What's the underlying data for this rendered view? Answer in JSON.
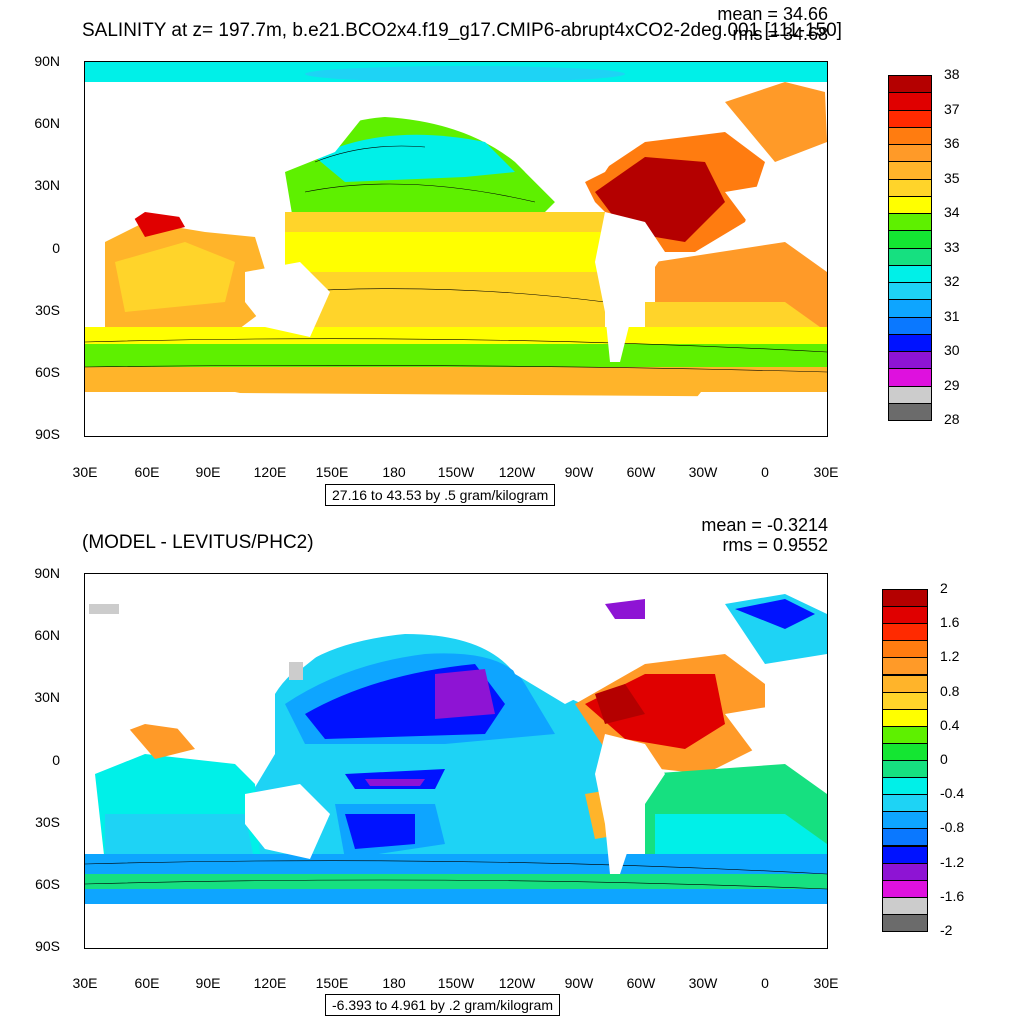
{
  "top": {
    "title": "SALINITY at z= 197.7m, b.e21.BCO2x4.f19_g17.CMIP6-abrupt4xCO2-2deg.001 [111-150]",
    "mean": "mean = 34.66",
    "rms": "rms = 34.68",
    "info": "27.16 to 43.53 by .5 gram/kilogram",
    "colorbar": {
      "colors": [
        "#6b6b6b",
        "#cccccc",
        "#de11de",
        "#8e14d4",
        "#0012ff",
        "#0a78ff",
        "#0ea5ff",
        "#1ed3f5",
        "#00f0e8",
        "#16e080",
        "#14e632",
        "#5ef000",
        "#ffff00",
        "#ffd42a",
        "#ffb42a",
        "#ff9a28",
        "#ff7c10",
        "#ff2a00",
        "#e00000",
        "#b40000"
      ],
      "labels": [
        "28",
        "29",
        "30",
        "31",
        "32",
        "33",
        "34",
        "35",
        "36",
        "37",
        "38"
      ]
    }
  },
  "bottom": {
    "title": "(MODEL - LEVITUS/PHC2)",
    "mean": "mean = -0.3214",
    "rms": "rms = 0.9552",
    "info": "-6.393 to 4.961 by .2 gram/kilogram",
    "colorbar": {
      "colors": [
        "#6b6b6b",
        "#cccccc",
        "#de11de",
        "#8e14d4",
        "#0012ff",
        "#0a78ff",
        "#0ea5ff",
        "#1ed3f5",
        "#00f0e8",
        "#16e080",
        "#14e632",
        "#5ef000",
        "#ffff00",
        "#ffd42a",
        "#ffb42a",
        "#ff9a28",
        "#ff7c10",
        "#ff2a00",
        "#e00000",
        "#b40000"
      ],
      "labels": [
        "-2",
        "-1.6",
        "-1.2",
        "-0.8",
        "-0.4",
        "0",
        "0.4",
        "0.8",
        "1.2",
        "1.6",
        "2"
      ]
    }
  },
  "axes": {
    "lat_labels": [
      "90N",
      "60N",
      "30N",
      "0",
      "30S",
      "60S",
      "90S"
    ],
    "lon_labels": [
      "30E",
      "60E",
      "90E",
      "120E",
      "150E",
      "180",
      "150W",
      "120W",
      "90W",
      "60W",
      "30W",
      "0",
      "30E"
    ]
  }
}
